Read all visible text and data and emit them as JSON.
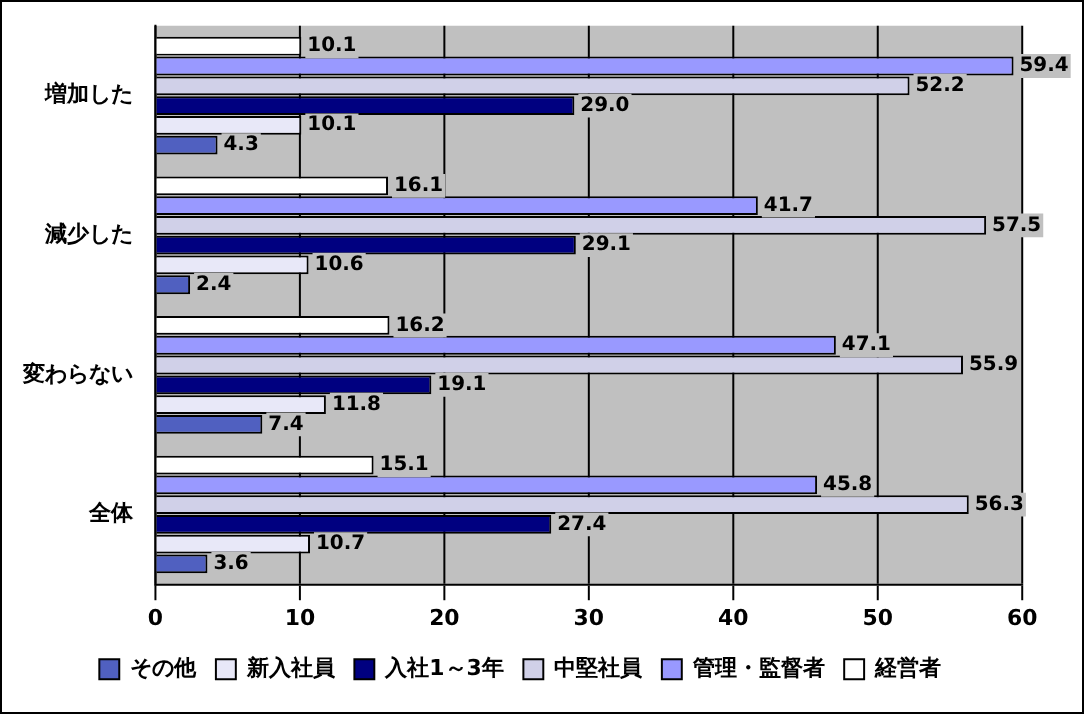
{
  "chart_data": {
    "type": "bar",
    "orientation": "horizontal",
    "categories": [
      "増加した",
      "減少した",
      "変わらない",
      "全体"
    ],
    "series": [
      {
        "name": "その他",
        "color": "#5060c0",
        "values": [
          4.3,
          2.4,
          7.4,
          3.6
        ],
        "value_labels": [
          "4.3",
          "2.4",
          "7.4",
          "3.6"
        ]
      },
      {
        "name": "新入社員",
        "color": "#e8e8f8",
        "values": [
          10.1,
          10.6,
          11.8,
          10.7
        ],
        "value_labels": [
          "10.1",
          "10.6",
          "11.8",
          "10.7"
        ]
      },
      {
        "name": "入社1～3年",
        "color": "#000080",
        "values": [
          29.0,
          29.1,
          19.1,
          27.4
        ],
        "value_labels": [
          "29.0",
          "29.1",
          "19.1",
          "27.4"
        ]
      },
      {
        "name": "中堅社員",
        "color": "#d0d0e8",
        "values": [
          52.2,
          57.5,
          55.9,
          56.3
        ],
        "value_labels": [
          "52.2",
          "57.5",
          "55.9",
          "56.3"
        ]
      },
      {
        "name": "管理・監督者",
        "color": "#9999ff",
        "values": [
          59.4,
          41.7,
          47.1,
          45.8
        ],
        "value_labels": [
          "59.4",
          "41.7",
          "47.1",
          "45.8"
        ]
      },
      {
        "name": "経営者",
        "color": "#ffffff",
        "values": [
          10.1,
          16.1,
          16.2,
          15.1
        ],
        "value_labels": [
          "10.1",
          "16.1",
          "16.2",
          "15.1"
        ]
      }
    ],
    "xlim": [
      0,
      60
    ],
    "xticks": [
      0,
      10,
      20,
      30,
      40,
      50,
      60
    ],
    "grid": "x",
    "legend": "bottom"
  }
}
